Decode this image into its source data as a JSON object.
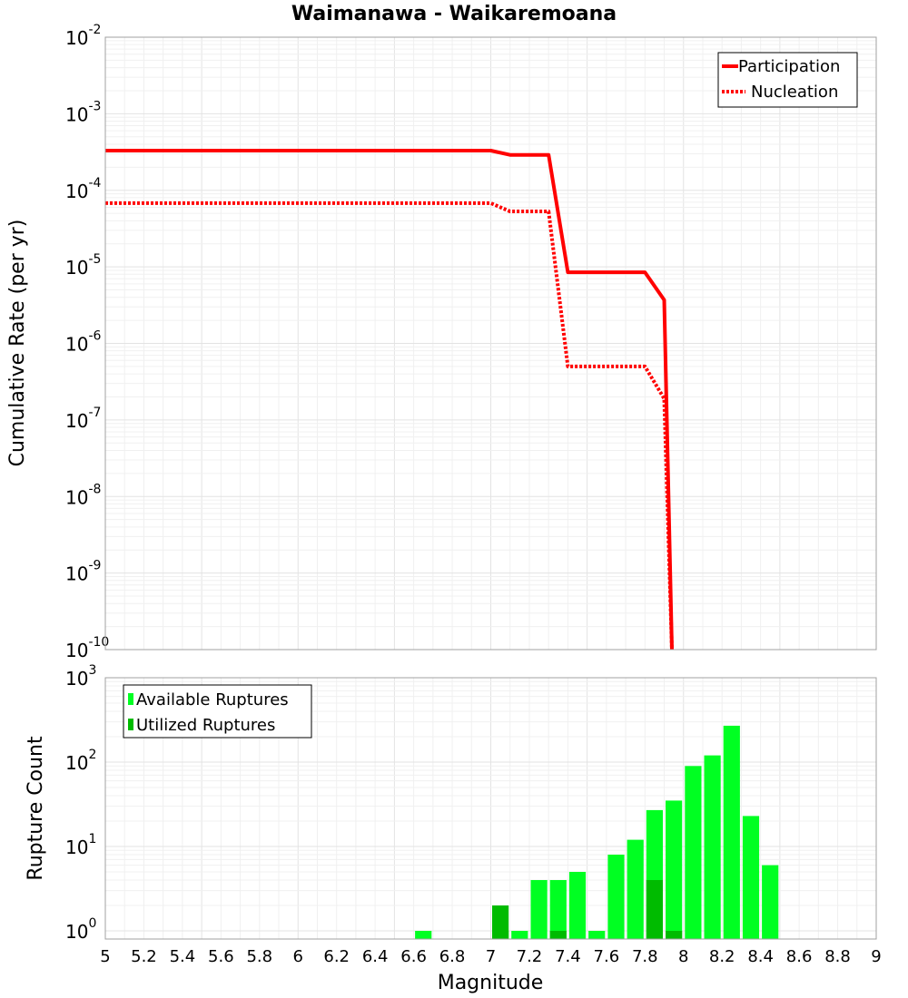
{
  "chart_data": [
    {
      "type": "line",
      "title": "Waimanawa - Waikaremoana",
      "ylabel": "Cumulative Rate (per yr)",
      "xlim": [
        5,
        9
      ],
      "ylim": [
        1e-10,
        0.01
      ],
      "yscale": "log",
      "grid": true,
      "legend_position": "top-right",
      "y_ticks": [
        {
          "base": "10",
          "exp": "-2"
        },
        {
          "base": "10",
          "exp": "-3"
        },
        {
          "base": "10",
          "exp": "-4"
        },
        {
          "base": "10",
          "exp": "-5"
        },
        {
          "base": "10",
          "exp": "-6"
        },
        {
          "base": "10",
          "exp": "-7"
        },
        {
          "base": "10",
          "exp": "-8"
        },
        {
          "base": "10",
          "exp": "-9"
        },
        {
          "base": "10",
          "exp": "-10"
        }
      ],
      "series": [
        {
          "name": "Participation",
          "style": "solid",
          "color": "#ff0000",
          "x": [
            5.0,
            7.0,
            7.1,
            7.3,
            7.4,
            7.5,
            7.6,
            7.7,
            7.8,
            7.9,
            7.94
          ],
          "y": [
            0.00033,
            0.00033,
            0.00029,
            0.00029,
            8.5e-06,
            8.5e-06,
            8.5e-06,
            8.5e-06,
            8.5e-06,
            3.7e-06,
            1e-10
          ]
        },
        {
          "name": "Nucleation",
          "style": "dotted",
          "color": "#ff0000",
          "x": [
            5.0,
            7.0,
            7.1,
            7.3,
            7.4,
            7.5,
            7.6,
            7.7,
            7.8,
            7.9,
            7.94
          ],
          "y": [
            6.8e-05,
            6.8e-05,
            5.3e-05,
            5.3e-05,
            5e-07,
            5e-07,
            5e-07,
            5e-07,
            5e-07,
            1.9e-07,
            1e-10
          ]
        }
      ]
    },
    {
      "type": "bar",
      "ylabel": "Rupture Count",
      "xlabel": "Magnitude",
      "xlim": [
        5,
        9
      ],
      "ylim": [
        0.8,
        1000
      ],
      "yscale": "log",
      "grid": true,
      "legend_position": "top-left",
      "bin_width": 0.1,
      "y_ticks": [
        {
          "base": "10",
          "exp": "3"
        },
        {
          "base": "10",
          "exp": "2"
        },
        {
          "base": "10",
          "exp": "1"
        },
        {
          "base": "10",
          "exp": "0"
        }
      ],
      "x_tick_labels": [
        "5",
        "5.2",
        "5.4",
        "5.6",
        "5.8",
        "6",
        "6.2",
        "6.4",
        "6.6",
        "6.8",
        "7",
        "7.2",
        "7.4",
        "7.6",
        "7.8",
        "8",
        "8.2",
        "8.4",
        "8.6",
        "8.8",
        "9"
      ],
      "series": [
        {
          "name": "Available Ruptures",
          "color": "#00ff22",
          "x": [
            6.65,
            7.05,
            7.15,
            7.25,
            7.35,
            7.45,
            7.55,
            7.65,
            7.75,
            7.85,
            7.95,
            8.05,
            8.15,
            8.25,
            8.35,
            8.45
          ],
          "values": [
            1,
            1,
            1,
            4,
            4,
            5,
            1,
            8,
            12,
            27,
            35,
            90,
            120,
            270,
            23,
            6
          ]
        },
        {
          "name": "Utilized Ruptures",
          "color": "#00bb00",
          "x": [
            7.05,
            7.35,
            7.85,
            7.95
          ],
          "values": [
            2,
            1,
            4,
            1
          ]
        }
      ]
    }
  ]
}
